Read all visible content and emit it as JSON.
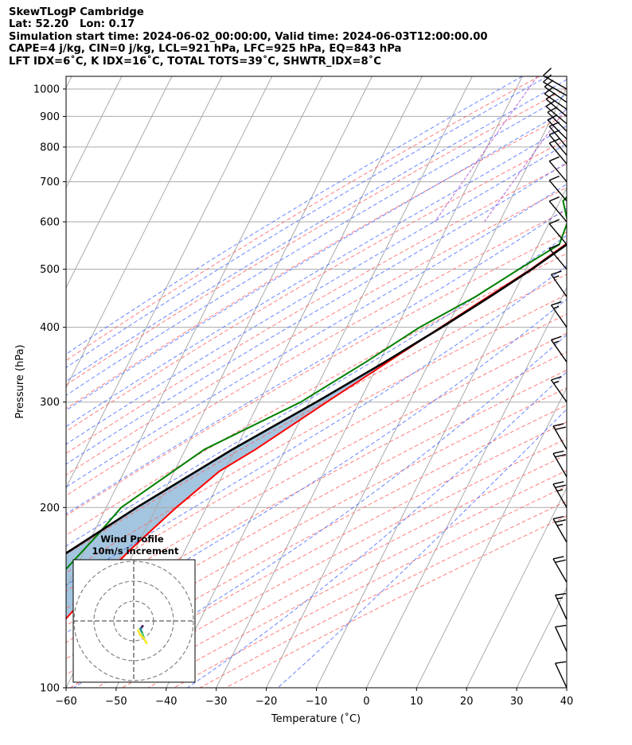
{
  "header": {
    "line1": "SkewTLogP Cambridge",
    "line2": "Lat: 52.20   Lon: 0.17",
    "line3": "Simulation start time: 2024-06-02_00:00:00, Valid time: 2024-06-03T12:00:00.00",
    "line4": "CAPE=4 j/kg, CIN=0 j/kg, LCL=921 hPa, LFC=925 hPa, EQ=843 hPa",
    "line5": "LFT IDX=6˚C, K IDX=16˚C, TOTAL TOTS=39˚C, SHWTR_IDX=8˚C"
  },
  "chart_data": {
    "type": "line",
    "subtype": "skew-T log-P diagram",
    "xlabel": "Temperature (˚C)",
    "ylabel": "Pressure (hPa)",
    "xlim": [
      -60,
      40
    ],
    "ylim": [
      1050,
      100
    ],
    "y_scale": "log",
    "x_ticks": [
      "−60",
      "−50",
      "−40",
      "−30",
      "−20",
      "−10",
      "0",
      "10",
      "20",
      "30",
      "40"
    ],
    "y_ticks": [
      "100",
      "200",
      "300",
      "400",
      "500",
      "600",
      "700",
      "800",
      "900",
      "1000"
    ],
    "grid": true,
    "colors": {
      "temperature": "#ff0000",
      "dewpoint": "#008000",
      "parcel": "#000000",
      "cape_fill": "#a3c5df",
      "dry_adiabats": "#ff6666",
      "moist_adiabats": "#4466ff",
      "mixing_ratio": "#aa44cc",
      "isotherms": "#aaaaaa"
    },
    "temperature": {
      "p": [
        1000,
        925,
        900,
        850,
        800,
        750,
        700,
        650,
        600,
        550,
        500,
        450,
        400,
        350,
        300,
        250,
        230,
        200,
        170,
        150,
        130,
        115,
        100
      ],
      "t": [
        18.7,
        14.5,
        13.5,
        12.0,
        10.5,
        8.5,
        5.8,
        2.5,
        -0.6,
        -4.6,
        -9.0,
        -14.8,
        -21.2,
        -28.3,
        -36.5,
        -46.0,
        -51.0,
        -56.0,
        -61.0,
        -64.0,
        -67.0,
        -69.0,
        -71.0
      ]
    },
    "dewpoint": {
      "p": [
        1000,
        950,
        920,
        900,
        850,
        800,
        750,
        700,
        650,
        600,
        550,
        500,
        450,
        400,
        350,
        300,
        250,
        200,
        180,
        150,
        130,
        100
      ],
      "td": [
        12.5,
        13.0,
        10.3,
        9.8,
        8.0,
        4.0,
        -2.0,
        -7.8,
        -9.4,
        -6.4,
        -5.8,
        -11.4,
        -17.3,
        -25.4,
        -32.7,
        -41.7,
        -56.2,
        -67.0,
        -69.0,
        -73.0,
        -77.0,
        -78.0
      ]
    },
    "parcel": {
      "p": [
        1000,
        950,
        925,
        900,
        850,
        800,
        750,
        700,
        650,
        600,
        550,
        500,
        450,
        400,
        350,
        300,
        250,
        200,
        150,
        125,
        100
      ],
      "t": [
        18.7,
        15.0,
        13.4,
        12.8,
        11.4,
        9.0,
        7.1,
        4.4,
        2.3,
        -0.6,
        -4.3,
        -8.8,
        -14.4,
        -21.0,
        -28.9,
        -38.6,
        -50.6,
        -63.9,
        -79.5,
        -86.7,
        -94.0
      ]
    },
    "wind_barbs": {
      "p": [
        1000,
        975,
        950,
        925,
        900,
        875,
        850,
        825,
        800,
        775,
        750,
        700,
        650,
        600,
        550,
        500,
        450,
        400,
        350,
        300,
        250,
        225,
        200,
        175,
        150,
        130,
        115,
        100
      ],
      "speed_kt": [
        10,
        10,
        10,
        10,
        10,
        10,
        10,
        10,
        10,
        10,
        10,
        10,
        10,
        10,
        10,
        10,
        15,
        15,
        15,
        15,
        20,
        20,
        25,
        25,
        20,
        15,
        10,
        10
      ],
      "direction_deg": [
        300,
        300,
        305,
        305,
        310,
        310,
        315,
        315,
        320,
        320,
        320,
        320,
        320,
        320,
        320,
        320,
        325,
        325,
        325,
        325,
        330,
        330,
        330,
        330,
        330,
        335,
        335,
        335
      ]
    },
    "inset": {
      "title_line1": "Wind Profile",
      "title_line2": "10m/s increment",
      "type": "hodograph"
    }
  }
}
